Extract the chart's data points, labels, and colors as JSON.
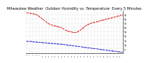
{
  "title": "Milwaukee Weather  Outdoor Humidity vs. Temperature  Every 5 Minutes",
  "bg_color": "#ffffff",
  "grid_color": "#aaaaaa",
  "red_color": "#dd0000",
  "blue_color": "#0000cc",
  "red_y": [
    99,
    99,
    98,
    98,
    97,
    96,
    95,
    93,
    90,
    87,
    84,
    81,
    78,
    75,
    73,
    71,
    70,
    69,
    68,
    67,
    66,
    65,
    63,
    61,
    59,
    57,
    56,
    55,
    54,
    53,
    53,
    54,
    56,
    58,
    61,
    64,
    67,
    70,
    72,
    74,
    75,
    76,
    77,
    78,
    79,
    80,
    81,
    82,
    83,
    84,
    85,
    86,
    87,
    88,
    89,
    90,
    91,
    92,
    93,
    94
  ],
  "blue_y": [
    32,
    32,
    32,
    32,
    31,
    31,
    31,
    30,
    30,
    30,
    29,
    29,
    29,
    28,
    28,
    28,
    27,
    27,
    27,
    26,
    26,
    26,
    25,
    25,
    24,
    24,
    23,
    23,
    22,
    22,
    21,
    21,
    20,
    20,
    19,
    19,
    18,
    18,
    17,
    17,
    16,
    16,
    15,
    15,
    14,
    14,
    13,
    13,
    12,
    12,
    11,
    11,
    10,
    10,
    9,
    9,
    8,
    8,
    7,
    7
  ],
  "ylim": [
    5,
    105
  ],
  "n_points": 60,
  "ytick_labels": [
    "p",
    "2p",
    "3p",
    "4p",
    "5p",
    "6p",
    "7p",
    "8p",
    "9p"
  ],
  "ytick_values": [
    15,
    25,
    35,
    45,
    55,
    65,
    75,
    85,
    95
  ],
  "title_fontsize": 3.8,
  "line_width": 0.6,
  "marker_size": 1.0
}
